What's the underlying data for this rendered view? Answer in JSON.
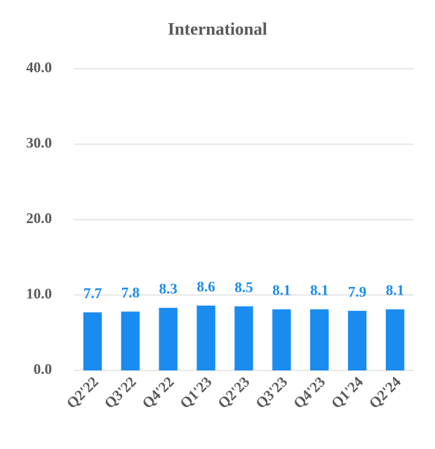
{
  "chart_data": {
    "type": "bar",
    "title": "International",
    "categories": [
      "Q2'22",
      "Q3'22",
      "Q4'22",
      "Q1'23",
      "Q2'23",
      "Q3'23",
      "Q4'23",
      "Q1'24",
      "Q2'24"
    ],
    "values": [
      7.7,
      7.8,
      8.3,
      8.6,
      8.5,
      8.1,
      8.1,
      7.9,
      8.1
    ],
    "color": "#1a8cf0",
    "ylim": [
      0,
      40
    ],
    "yticks": [
      {
        "value": 0,
        "label": "0.0"
      },
      {
        "value": 10,
        "label": "10.0"
      },
      {
        "value": 20,
        "label": "20.0"
      },
      {
        "value": 30,
        "label": "30.0"
      },
      {
        "value": 40,
        "label": "40.0"
      }
    ],
    "grid": true
  }
}
